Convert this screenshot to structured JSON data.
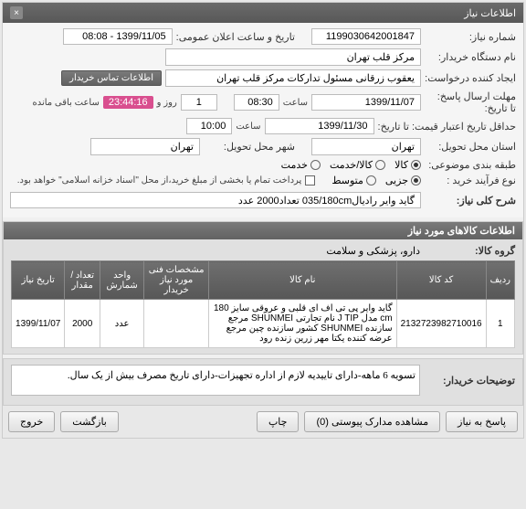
{
  "panel_title": "اطلاعات نیاز",
  "fields": {
    "niaz_no_lbl": "شماره نیاز:",
    "niaz_no": "1199030642001847",
    "announce_lbl": "تاریخ و ساعت اعلان عمومی:",
    "announce": "1399/11/05 - 08:08",
    "buyer_lbl": "نام دستگاه خریدار:",
    "buyer": "مرکز قلب تهران",
    "creator_lbl": "ایجاد کننده درخواست:",
    "creator": "یعقوب زرقانی مسئول تدارکات مرکز قلب تهران",
    "contact_btn": "اطلاعات تماس خریدار",
    "deadline_ans_lbl": "مهلت ارسال پاسخ:",
    "until_lbl": "تا تاریخ:",
    "deadline_ans_date": "1399/11/07",
    "saat_lbl": "ساعت",
    "deadline_ans_time": "08:30",
    "days_box": "1",
    "rooz_lbl": "روز و",
    "timer": "23:44:16",
    "remain_lbl": "ساعت باقی مانده",
    "min_valid_lbl": "حداقل تاریخ اعتبار قیمت: تا تاریخ:",
    "min_valid_date": "1399/11/30",
    "min_valid_time": "10:00",
    "province_lbl": "استان محل تحویل:",
    "province": "تهران",
    "city_lbl": "شهر محل تحویل:",
    "city": "تهران",
    "group_lbl": "طبقه بندی موضوعی:",
    "opt_kala": "کالا",
    "opt_service": "کالا/خدمت",
    "opt_khedmat": "خدمت",
    "buy_type_lbl": "نوع فرآیند خرید :",
    "opt_small": "جزیی",
    "opt_medium": "متوسط",
    "pay_chk_lbl": "پرداخت تمام یا بخشی از مبلغ خرید،از محل \"اسناد خزانه اسلامی\" خواهد بود.",
    "desc_lbl": "شرح کلی نیاز:",
    "desc_val": "گاید وایر رادیال035/180cm تعداد2000 عدد"
  },
  "items_section_title": "اطلاعات کالاهای مورد نیاز",
  "group_field_lbl": "گروه کالا:",
  "group_field_val": "دارو، پزشکی و سلامت",
  "table": {
    "headers": [
      "ردیف",
      "کد کالا",
      "نام کالا",
      "مشخصات فنی مورد نیاز خریدار",
      "واحد شمارش",
      "تعداد / مقدار",
      "تاریخ نیاز"
    ],
    "rows": [
      [
        "1",
        "2132723982710016",
        "گاید وایر پی تی اف ای قلبی و عروقی سایز 180 cm مدل J TIP نام تجارتی SHUNMEI مرجع سازنده SHUNMEI کشور سازنده چین مرجع عرضه کننده یکتا مهر زرین زنده رود",
        "",
        "عدد",
        "2000",
        "1399/11/07"
      ]
    ]
  },
  "buyer_notes_lbl": "توضیحات خریدار:",
  "buyer_notes_val": "تسویه 6 ماهه-دارای تاییدیه لازم از اداره تجهیزات-دارای تاریخ مصرف بیش از یک سال.",
  "footer": {
    "reply": "پاسخ به نیاز",
    "attach": "مشاهده مدارک پیوستی  (0)",
    "print": "چاپ",
    "back": "بازگشت",
    "exit": "خروج"
  }
}
